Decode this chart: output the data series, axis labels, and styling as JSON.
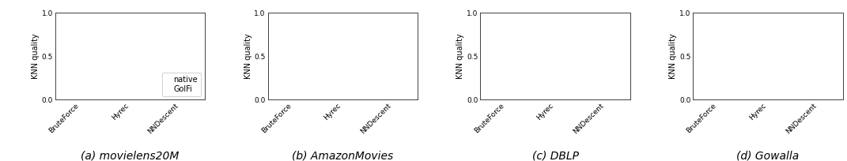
{
  "subplots": [
    {
      "title": "(a) movielens20M",
      "show_legend": true
    },
    {
      "title": "(b) AmazonMovies",
      "show_legend": false
    },
    {
      "title": "(c) DBLP",
      "show_legend": false
    },
    {
      "title": "(d) Gowalla",
      "show_legend": false
    }
  ],
  "xtick_labels": [
    "BruteForce",
    "Hyrec",
    "NNDescent"
  ],
  "ylabel": "KNN quality",
  "ylim": [
    0.0,
    1.0
  ],
  "yticks": [
    0.0,
    0.5,
    1.0
  ],
  "legend_labels": [
    "native",
    "GolFi"
  ],
  "caption_fontsize": 10,
  "label_fontsize": 7,
  "tick_fontsize": 6.5,
  "legend_fontsize": 7,
  "background_color": "#ffffff",
  "spine_color": "#404040"
}
